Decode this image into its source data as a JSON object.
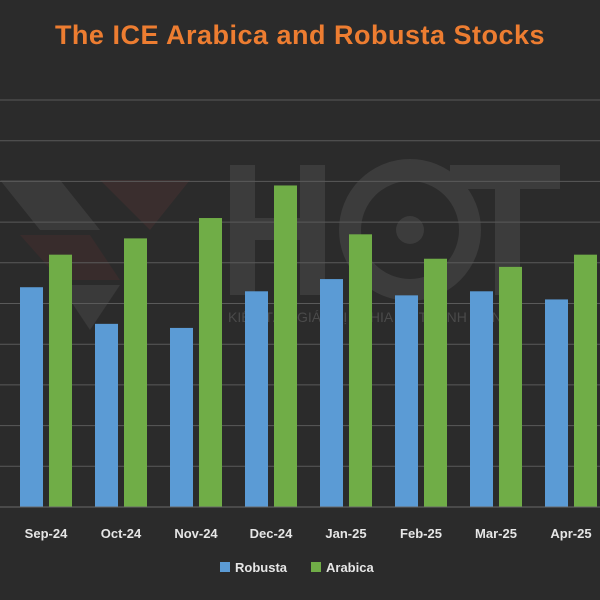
{
  "chart_data": {
    "type": "bar",
    "title": "The ICE Arabica and Robusta Stocks",
    "categories": [
      "Sep-24",
      "Oct-24",
      "Nov-24",
      "Dec-24",
      "Jan-25",
      "Feb-25",
      "Mar-25",
      "Apr-25"
    ],
    "series": [
      {
        "name": "Robusta",
        "color": "#5b9bd5",
        "values": [
          5.4,
          4.5,
          4.4,
          5.3,
          5.6,
          5.2,
          5.3,
          5.1
        ]
      },
      {
        "name": "Arabica",
        "color": "#70ad47",
        "values": [
          6.2,
          6.6,
          7.1,
          7.9,
          6.7,
          6.1,
          5.9,
          6.2
        ]
      }
    ],
    "ylim": [
      0,
      10
    ],
    "grid": true,
    "legend_position": "bottom",
    "xlabel": "",
    "ylabel": ""
  },
  "watermark": {
    "brand": "HCT",
    "tagline": "KIẾN TẠO GIÁ TRỊ - CHIA SẺ THÀNH CÔNG"
  },
  "colors": {
    "background": "#2b2b2b",
    "title": "#ed7d31",
    "gridline": "#5a5a5a",
    "text": "#e6e6e6"
  }
}
